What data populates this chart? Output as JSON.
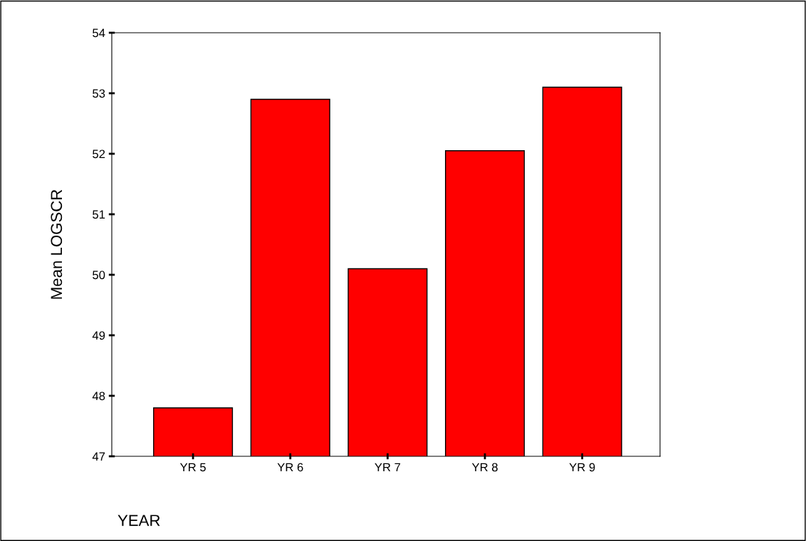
{
  "chart_data": {
    "type": "bar",
    "xlabel": "YEAR",
    "ylabel": "Mean LOGSCR",
    "categories": [
      "YR 5",
      "YR 6",
      "YR 7",
      "YR 8",
      "YR 9"
    ],
    "values": [
      47.8,
      52.9,
      50.1,
      52.05,
      53.1
    ],
    "color": "#ff0000",
    "ylim": [
      47,
      54
    ],
    "yticks": [
      47,
      48,
      49,
      50,
      51,
      52,
      53,
      54
    ],
    "grid": false,
    "legend": false
  }
}
